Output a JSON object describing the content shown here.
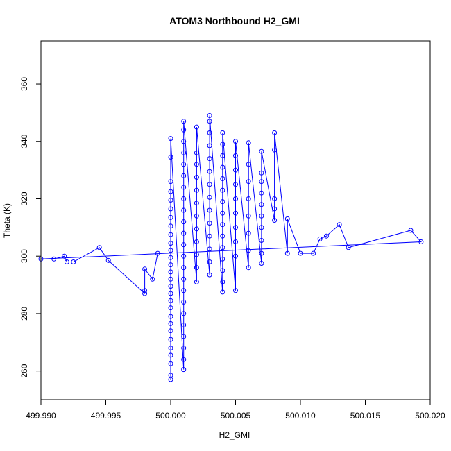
{
  "chart_data": {
    "type": "line",
    "title": "ATOM3 Northbound H2_GMI",
    "xlabel": "H2_GMI",
    "ylabel": "Theta (K)",
    "xlim": [
      499.99,
      500.02
    ],
    "ylim": [
      250,
      375
    ],
    "x_ticks": [
      499.99,
      499.995,
      500.0,
      500.005,
      500.01,
      500.015,
      500.02
    ],
    "x_tick_labels": [
      "499.990",
      "499.995",
      "500.000",
      "500.005",
      "500.010",
      "500.015",
      "500.020"
    ],
    "y_ticks": [
      260,
      280,
      300,
      320,
      340,
      360
    ],
    "y_tick_labels": [
      "260",
      "280",
      "300",
      "320",
      "340",
      "360"
    ],
    "grid": false,
    "series": [
      {
        "color": "#0000ff",
        "marker": "open-circle",
        "points": [
          [
            500.0,
            257.0
          ],
          [
            500.0,
            258.5
          ],
          [
            500.0,
            262.5
          ],
          [
            500.0,
            265.5
          ],
          [
            500.0,
            268.0
          ],
          [
            500.0,
            271.0
          ],
          [
            500.0,
            274.0
          ],
          [
            500.0,
            276.5
          ],
          [
            500.0,
            279.0
          ],
          [
            500.0,
            282.0
          ],
          [
            500.0,
            284.5
          ],
          [
            500.0,
            287.0
          ],
          [
            500.0,
            289.5
          ],
          [
            500.0,
            292.0
          ],
          [
            500.0,
            294.5
          ],
          [
            500.0,
            297.0
          ],
          [
            500.0,
            299.5
          ],
          [
            500.0,
            302.0
          ],
          [
            500.0,
            304.5
          ],
          [
            500.0,
            307.5
          ],
          [
            500.0,
            310.5
          ],
          [
            500.0,
            313.5
          ],
          [
            500.0,
            316.5
          ],
          [
            500.0,
            319.5
          ],
          [
            500.0,
            322.5
          ],
          [
            500.0,
            326.0
          ],
          [
            500.0,
            334.5
          ],
          [
            500.0,
            341.0
          ],
          [
            500.001,
            260.5
          ],
          [
            500.001,
            264.0
          ],
          [
            500.001,
            268.0
          ],
          [
            500.001,
            272.0
          ],
          [
            500.001,
            276.0
          ],
          [
            500.001,
            280.0
          ],
          [
            500.001,
            284.0
          ],
          [
            500.001,
            288.0
          ],
          [
            500.001,
            292.0
          ],
          [
            500.001,
            296.0
          ],
          [
            500.001,
            300.0
          ],
          [
            500.001,
            304.0
          ],
          [
            500.001,
            308.0
          ],
          [
            500.001,
            312.0
          ],
          [
            500.001,
            316.0
          ],
          [
            500.001,
            320.0
          ],
          [
            500.001,
            324.0
          ],
          [
            500.001,
            328.0
          ],
          [
            500.001,
            332.0
          ],
          [
            500.001,
            336.0
          ],
          [
            500.001,
            340.0
          ],
          [
            500.001,
            344.0
          ],
          [
            500.001,
            347.0
          ],
          [
            500.002,
            291.0
          ],
          [
            500.002,
            296.0
          ],
          [
            500.002,
            300.5
          ],
          [
            500.002,
            305.0
          ],
          [
            500.002,
            309.5
          ],
          [
            500.002,
            314.0
          ],
          [
            500.002,
            318.5
          ],
          [
            500.002,
            323.0
          ],
          [
            500.002,
            327.5
          ],
          [
            500.002,
            332.0
          ],
          [
            500.002,
            336.0
          ],
          [
            500.002,
            345.0
          ],
          [
            500.003,
            293.5
          ],
          [
            500.003,
            298.0
          ],
          [
            500.003,
            302.5
          ],
          [
            500.003,
            307.0
          ],
          [
            500.003,
            311.5
          ],
          [
            500.003,
            316.0
          ],
          [
            500.003,
            320.5
          ],
          [
            500.003,
            325.0
          ],
          [
            500.003,
            329.5
          ],
          [
            500.003,
            334.0
          ],
          [
            500.003,
            338.5
          ],
          [
            500.003,
            343.0
          ],
          [
            500.003,
            347.0
          ],
          [
            500.003,
            349.0
          ],
          [
            500.004,
            287.5
          ],
          [
            500.004,
            291.0
          ],
          [
            500.004,
            295.0
          ],
          [
            500.004,
            299.0
          ],
          [
            500.004,
            303.0
          ],
          [
            500.004,
            307.0
          ],
          [
            500.004,
            311.0
          ],
          [
            500.004,
            315.0
          ],
          [
            500.004,
            319.0
          ],
          [
            500.004,
            323.0
          ],
          [
            500.004,
            327.0
          ],
          [
            500.004,
            331.0
          ],
          [
            500.004,
            335.0
          ],
          [
            500.004,
            339.0
          ],
          [
            500.004,
            343.0
          ],
          [
            500.005,
            288.0
          ],
          [
            500.005,
            300.0
          ],
          [
            500.005,
            305.0
          ],
          [
            500.005,
            310.0
          ],
          [
            500.005,
            315.0
          ],
          [
            500.005,
            320.0
          ],
          [
            500.005,
            325.0
          ],
          [
            500.005,
            330.0
          ],
          [
            500.005,
            335.0
          ],
          [
            500.005,
            340.0
          ],
          [
            500.006,
            296.0
          ],
          [
            500.006,
            302.0
          ],
          [
            500.006,
            308.0
          ],
          [
            500.006,
            314.0
          ],
          [
            500.006,
            320.0
          ],
          [
            500.006,
            326.0
          ],
          [
            500.006,
            332.0
          ],
          [
            500.006,
            339.5
          ],
          [
            500.007,
            297.5
          ],
          [
            500.007,
            301.0
          ],
          [
            500.007,
            305.5
          ],
          [
            500.007,
            310.0
          ],
          [
            500.007,
            314.0
          ],
          [
            500.007,
            318.0
          ],
          [
            500.007,
            322.0
          ],
          [
            500.007,
            326.0
          ],
          [
            500.007,
            329.0
          ],
          [
            500.007,
            336.5
          ],
          [
            500.008,
            312.5
          ],
          [
            500.008,
            316.5
          ],
          [
            500.008,
            320.0
          ],
          [
            500.008,
            337.0
          ],
          [
            500.008,
            343.0
          ],
          [
            500.009,
            301.0
          ],
          [
            500.009,
            313.0
          ],
          [
            500.01,
            301.0
          ],
          [
            500.011,
            301.0
          ],
          [
            500.0115,
            306.0
          ],
          [
            500.012,
            307.0
          ],
          [
            500.013,
            311.0
          ],
          [
            500.0137,
            303.0
          ],
          [
            500.0185,
            309.0
          ],
          [
            500.0193,
            305.0
          ],
          [
            499.99,
            299.0
          ],
          [
            499.991,
            299.0
          ],
          [
            499.9918,
            300.0
          ],
          [
            499.992,
            298.0
          ],
          [
            499.9925,
            298.0
          ],
          [
            499.9945,
            303.0
          ],
          [
            499.9952,
            298.5
          ],
          [
            499.998,
            287.0
          ],
          [
            499.998,
            288.0
          ],
          [
            499.998,
            295.5
          ],
          [
            499.9986,
            292.0
          ],
          [
            499.999,
            301.0
          ]
        ]
      }
    ]
  }
}
